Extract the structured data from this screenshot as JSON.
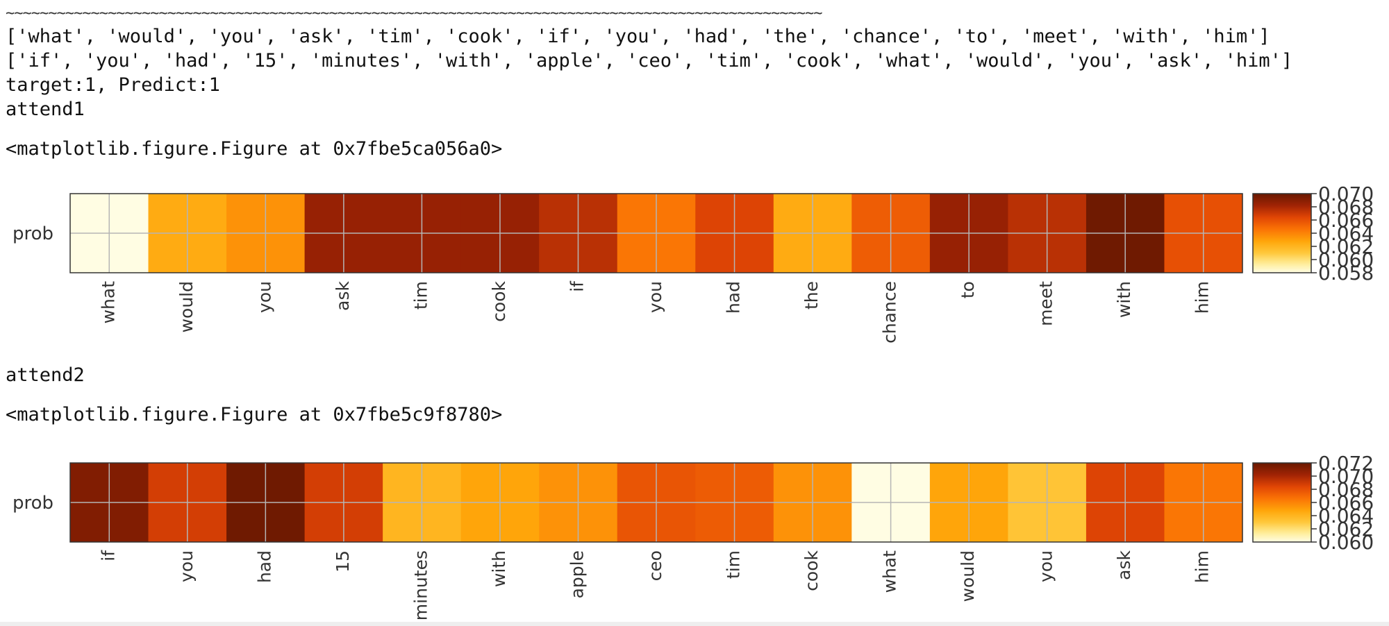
{
  "output": {
    "separator": "~~~~~~~~~~~~~~~~~~~~~~~~~~~~~~~~~~~~~~~~~~~~~~~~~~~~~~~~~~~~~~~~~~~~~~~~~~~~~~~~~~~~~~~~~~~~~~~~",
    "sentence1": "['what', 'would', 'you', 'ask', 'tim', 'cook', 'if', 'you', 'had', 'the', 'chance', 'to', 'meet', 'with', 'him']",
    "sentence2": "['if', 'you', 'had', '15', 'minutes', 'with', 'apple', 'ceo', 'tim', 'cook', 'what', 'would', 'you', 'ask', 'him']",
    "result": "target:1, Predict:1",
    "attend1_label": "attend1",
    "figure1_repr": "<matplotlib.figure.Figure at 0x7fbe5ca056a0>",
    "attend2_label": "attend2",
    "figure2_repr": "<matplotlib.figure.Figure at 0x7fbe5c9f8780>"
  },
  "colors": {
    "colormap": "YlOrBr-like heat (light yellow → orange → dark brown)",
    "low": "#fffde3",
    "high": "#6b1a00"
  },
  "chart_data": [
    {
      "type": "heatmap",
      "ylabel_tick": "prob",
      "categories": [
        "what",
        "would",
        "you",
        "ask",
        "tim",
        "cook",
        "if",
        "you",
        "had",
        "the",
        "chance",
        "to",
        "meet",
        "with",
        "him"
      ],
      "values": [
        0.058,
        0.0625,
        0.0635,
        0.0685,
        0.0685,
        0.0685,
        0.0675,
        0.0645,
        0.0665,
        0.0625,
        0.0655,
        0.0685,
        0.0675,
        0.0698,
        0.066
      ],
      "colorbar_range": [
        0.058,
        0.07
      ],
      "colorbar_ticks": [
        0.058,
        0.06,
        0.062,
        0.064,
        0.066,
        0.068,
        0.07
      ],
      "grid": true
    },
    {
      "type": "heatmap",
      "ylabel_tick": "prob",
      "categories": [
        "if",
        "you",
        "had",
        "15",
        "minutes",
        "with",
        "apple",
        "ceo",
        "tim",
        "cook",
        "what",
        "would",
        "you",
        "ask",
        "him"
      ],
      "values": [
        0.0712,
        0.0688,
        0.0718,
        0.0688,
        0.064,
        0.0648,
        0.0655,
        0.0678,
        0.0675,
        0.0655,
        0.06,
        0.0648,
        0.0632,
        0.0685,
        0.0665
      ],
      "colorbar_range": [
        0.06,
        0.072
      ],
      "colorbar_ticks": [
        0.06,
        0.062,
        0.064,
        0.066,
        0.068,
        0.07,
        0.072
      ],
      "grid": true
    }
  ]
}
